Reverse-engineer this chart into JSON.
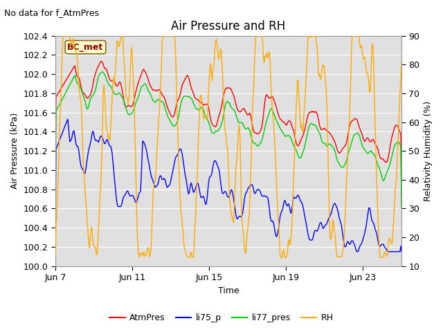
{
  "title": "Air Pressure and RH",
  "top_left_text": "No data for f_AtmPres",
  "box_label": "BC_met",
  "xlabel": "Time",
  "ylabel_left": "Air Pressure (kPa)",
  "ylabel_right": "Relativity Humidity (%)",
  "ylim_left": [
    100.0,
    102.4
  ],
  "ylim_right": [
    10,
    90
  ],
  "yticks_left": [
    100.0,
    100.2,
    100.4,
    100.6,
    100.8,
    101.0,
    101.2,
    101.4,
    101.6,
    101.8,
    102.0,
    102.2,
    102.4
  ],
  "yticks_right": [
    10,
    20,
    30,
    40,
    50,
    60,
    70,
    80,
    90
  ],
  "xtick_labels": [
    "Jun 7",
    "Jun 11",
    "Jun 15",
    "Jun 19",
    "Jun 23"
  ],
  "xtick_positions": [
    0,
    4,
    8,
    12,
    16
  ],
  "xlim": [
    0,
    18
  ],
  "colors": {
    "AtmPres": "#ff0000",
    "li75_p": "#0000ff",
    "li77_pres": "#00cc00",
    "RH": "#ffaa00"
  },
  "bg_color": "#e0e0e0",
  "fig_facecolor": "#ffffff",
  "legend_labels": [
    "AtmPres",
    "li75_p",
    "li77_pres",
    "RH"
  ],
  "title_fontsize": 12,
  "label_fontsize": 9,
  "tick_fontsize": 9,
  "legend_fontsize": 9,
  "linewidth": 1.0,
  "figsize": [
    6.4,
    4.8
  ],
  "dpi": 100
}
